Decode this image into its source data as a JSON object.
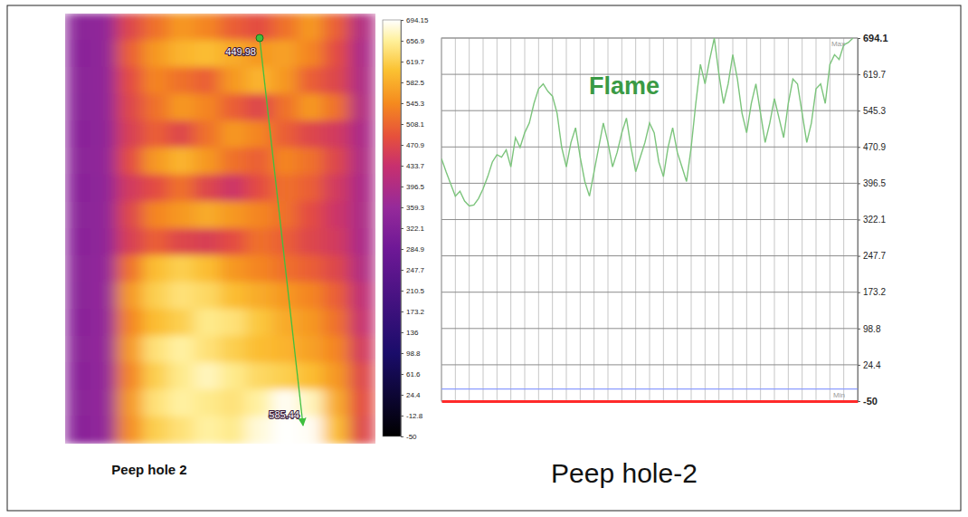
{
  "chart_data": [
    {
      "type": "heatmap",
      "title": "Peep hole 2",
      "cells": [
        [
          338,
          348,
          470,
          520,
          560,
          540,
          500,
          480,
          520,
          560,
          500,
          400
        ],
        [
          336,
          346,
          500,
          560,
          590,
          600,
          580,
          560,
          570,
          540,
          480,
          390
        ],
        [
          338,
          347,
          480,
          540,
          520,
          500,
          560,
          590,
          560,
          500,
          470,
          395
        ],
        [
          337,
          346,
          470,
          520,
          560,
          540,
          500,
          470,
          520,
          560,
          520,
          400
        ],
        [
          336,
          345,
          460,
          500,
          470,
          520,
          560,
          540,
          500,
          470,
          450,
          390
        ],
        [
          338,
          348,
          480,
          560,
          590,
          560,
          520,
          500,
          540,
          520,
          470,
          395
        ],
        [
          335,
          345,
          450,
          480,
          520,
          470,
          440,
          480,
          520,
          500,
          450,
          390
        ],
        [
          337,
          347,
          470,
          540,
          560,
          580,
          560,
          540,
          520,
          480,
          440,
          392
        ],
        [
          335,
          346,
          460,
          500,
          470,
          460,
          480,
          520,
          500,
          470,
          450,
          390
        ],
        [
          338,
          350,
          520,
          600,
          620,
          600,
          560,
          540,
          520,
          500,
          470,
          400
        ],
        [
          337,
          352,
          560,
          620,
          640,
          630,
          600,
          580,
          560,
          540,
          500,
          420
        ],
        [
          336,
          350,
          540,
          600,
          620,
          650,
          640,
          610,
          580,
          560,
          520,
          430
        ],
        [
          338,
          352,
          560,
          640,
          660,
          640,
          620,
          600,
          590,
          570,
          540,
          450
        ],
        [
          336,
          350,
          540,
          620,
          650,
          670,
          650,
          630,
          620,
          600,
          560,
          470
        ],
        [
          337,
          352,
          560,
          640,
          660,
          650,
          640,
          660,
          690,
          670,
          580,
          480
        ],
        [
          335,
          350,
          550,
          620,
          640,
          660,
          650,
          680,
          694,
          690,
          600,
          470
        ]
      ],
      "colorbar": {
        "range": [
          -50,
          694.15
        ],
        "ticks": [
          694.15,
          656.9,
          619.7,
          582.5,
          545.3,
          508.1,
          470.9,
          433.7,
          396.5,
          359.3,
          322.1,
          284.9,
          247.7,
          210.5,
          173.2,
          136,
          98.8,
          61.6,
          24.4,
          -12.8,
          -50
        ]
      },
      "point_labels": [
        449.98,
        585.44
      ]
    },
    {
      "type": "line",
      "title": "Peep hole-2",
      "annotations": [
        "Flame",
        "Max",
        "Min"
      ],
      "x": [
        0,
        1,
        2,
        3,
        4,
        5,
        6,
        7,
        8,
        9,
        10,
        11,
        12,
        13,
        14,
        15,
        16,
        17,
        18,
        19,
        20,
        21,
        22,
        23,
        24,
        25,
        26,
        27,
        28,
        29,
        30,
        31,
        32,
        33,
        34,
        35,
        36,
        37,
        38,
        39,
        40,
        41,
        42,
        43,
        44,
        45,
        46,
        47,
        48,
        49,
        50,
        51,
        52,
        53,
        54,
        55,
        56,
        57,
        58,
        59,
        60,
        61,
        62,
        63,
        64,
        65,
        66,
        67,
        68,
        69,
        70,
        71,
        72,
        73,
        74,
        75,
        76,
        77,
        78,
        79,
        80,
        81,
        82,
        83,
        84,
        85,
        86,
        87,
        88,
        89
      ],
      "series": [
        {
          "name": "Flame",
          "color": "#7cc47c",
          "values": [
            447,
            420,
            395,
            370,
            380,
            360,
            350,
            352,
            365,
            385,
            410,
            440,
            455,
            450,
            465,
            430,
            490,
            470,
            500,
            520,
            560,
            590,
            600,
            585,
            575,
            540,
            470,
            430,
            480,
            510,
            450,
            400,
            370,
            420,
            470,
            520,
            480,
            430,
            460,
            500,
            530,
            470,
            420,
            450,
            480,
            520,
            500,
            440,
            410,
            470,
            510,
            460,
            430,
            400,
            470,
            560,
            640,
            600,
            650,
            694,
            620,
            560,
            600,
            660,
            610,
            540,
            500,
            560,
            600,
            540,
            480,
            520,
            570,
            530,
            490,
            560,
            610,
            600,
            540,
            480,
            520,
            590,
            600,
            560,
            640,
            660,
            650,
            680,
            685,
            694
          ]
        }
      ],
      "hlines": [
        {
          "value": -25,
          "color": "#8c9cff"
        }
      ],
      "xlim": [
        0,
        90
      ],
      "xticks": [
        0,
        3,
        6,
        9,
        12,
        15,
        18,
        21,
        24,
        27,
        30,
        33,
        36,
        39,
        42,
        45,
        48,
        51,
        54,
        57,
        60,
        63,
        66,
        69,
        72,
        75,
        78,
        81,
        84,
        87,
        90
      ],
      "ylim": [
        -50,
        694.1
      ],
      "yticks": [
        694.1,
        619.7,
        545.3,
        470.9,
        396.5,
        322.1,
        247.7,
        173.2,
        98.8,
        24.4,
        -50
      ],
      "grid": true,
      "tick_labels": "y"
    }
  ]
}
